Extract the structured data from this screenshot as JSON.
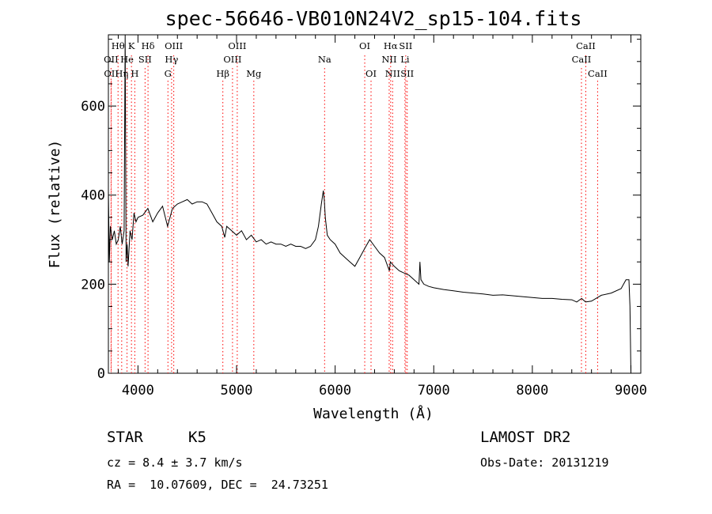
{
  "chart_data": {
    "type": "line",
    "title": "spec-56646-VB010N24V2_sp15-104.fits",
    "xlabel": "Wavelength (Å)",
    "ylabel": "Flux (relative)",
    "xlim": [
      3700,
      9100
    ],
    "ylim": [
      0,
      760
    ],
    "xticks": [
      4000,
      5000,
      6000,
      7000,
      8000,
      9000
    ],
    "yticks": [
      0,
      200,
      400,
      600
    ],
    "grid": false,
    "series": [
      {
        "x": [
          3700,
          3710,
          3720,
          3740,
          3760,
          3780,
          3800,
          3820,
          3840,
          3860,
          3870,
          3880,
          3890,
          3900,
          3920,
          3940,
          3960,
          3980,
          4000,
          4050,
          4100,
          4150,
          4200,
          4250,
          4300,
          4350,
          4400,
          4450,
          4500,
          4550,
          4600,
          4650,
          4700,
          4750,
          4800,
          4850,
          4880,
          4900,
          4950,
          5000,
          5050,
          5100,
          5150,
          5200,
          5250,
          5300,
          5350,
          5400,
          5450,
          5500,
          5550,
          5600,
          5650,
          5700,
          5750,
          5800,
          5830,
          5860,
          5880,
          5890,
          5900,
          5920,
          5950,
          6000,
          6050,
          6100,
          6150,
          6200,
          6250,
          6300,
          6350,
          6400,
          6450,
          6500,
          6550,
          6560,
          6600,
          6650,
          6700,
          6750,
          6800,
          6850,
          6860,
          6870,
          6900,
          6950,
          7000,
          7100,
          7200,
          7300,
          7400,
          7500,
          7600,
          7700,
          7800,
          7900,
          8000,
          8100,
          8200,
          8300,
          8400,
          8450,
          8500,
          8540,
          8600,
          8660,
          8700,
          8800,
          8900,
          8950,
          8980,
          8990,
          9000
        ],
        "y": [
          410,
          250,
          330,
          300,
          320,
          290,
          300,
          330,
          290,
          320,
          760,
          250,
          290,
          240,
          320,
          300,
          360,
          340,
          350,
          355,
          370,
          340,
          360,
          375,
          330,
          370,
          380,
          385,
          390,
          380,
          385,
          385,
          380,
          360,
          340,
          330,
          305,
          330,
          320,
          310,
          320,
          300,
          310,
          295,
          300,
          290,
          295,
          290,
          290,
          285,
          290,
          285,
          285,
          280,
          285,
          300,
          330,
          380,
          410,
          390,
          350,
          310,
          300,
          290,
          270,
          260,
          250,
          240,
          260,
          280,
          300,
          285,
          270,
          260,
          230,
          250,
          240,
          230,
          225,
          220,
          210,
          200,
          250,
          210,
          200,
          195,
          192,
          188,
          185,
          182,
          180,
          178,
          175,
          176,
          174,
          172,
          170,
          168,
          168,
          166,
          165,
          160,
          168,
          160,
          162,
          170,
          175,
          180,
          190,
          210,
          210,
          150,
          0
        ]
      }
    ],
    "line_markers": [
      {
        "label": "Hθ",
        "x": 3798,
        "row": 1,
        "color": "#000000"
      },
      {
        "label": "K",
        "x": 3934,
        "row": 1,
        "color": "#000000"
      },
      {
        "label": "Hδ",
        "x": 4102,
        "row": 1,
        "color": "#000000"
      },
      {
        "label": "OIII",
        "x": 4363,
        "row": 1,
        "color": "#000000"
      },
      {
        "label": "OIII",
        "x": 5007,
        "row": 1,
        "color": "#000000"
      },
      {
        "label": "OI",
        "x": 6300,
        "row": 1,
        "color": "#000000"
      },
      {
        "label": "Hα",
        "x": 6563,
        "row": 1,
        "color": "#000000"
      },
      {
        "label": "SII",
        "x": 6716,
        "row": 1,
        "color": "#000000"
      },
      {
        "label": "CaII",
        "x": 8542,
        "row": 1,
        "color": "#000000"
      },
      {
        "label": "OII",
        "x": 3727,
        "row": 2,
        "color": "#000000"
      },
      {
        "label": "He",
        "x": 3889,
        "row": 2,
        "color": "#000000"
      },
      {
        "label": "SII",
        "x": 4072,
        "row": 2,
        "color": "#000000"
      },
      {
        "label": "Hγ",
        "x": 4341,
        "row": 2,
        "color": "#000000"
      },
      {
        "label": "OIII",
        "x": 4959,
        "row": 2,
        "color": "#000000"
      },
      {
        "label": "Na",
        "x": 5893,
        "row": 2,
        "color": "#000000"
      },
      {
        "label": "NII",
        "x": 6548,
        "row": 2,
        "color": "#000000"
      },
      {
        "label": "Li",
        "x": 6708,
        "row": 2,
        "color": "#000000"
      },
      {
        "label": "CaII",
        "x": 8498,
        "row": 2,
        "color": "#000000"
      },
      {
        "label": "OII",
        "x": 3729,
        "row": 3,
        "color": "#000000"
      },
      {
        "label": "Hη",
        "x": 3835,
        "row": 3,
        "color": "#000000"
      },
      {
        "label": "H",
        "x": 3968,
        "row": 3,
        "color": "#000000"
      },
      {
        "label": "G",
        "x": 4304,
        "row": 3,
        "color": "#000000"
      },
      {
        "label": "Hβ",
        "x": 4861,
        "row": 3,
        "color": "#000000"
      },
      {
        "label": "Mg",
        "x": 5175,
        "row": 3,
        "color": "#000000"
      },
      {
        "label": "OI",
        "x": 6364,
        "row": 3,
        "color": "#000000"
      },
      {
        "label": "NII",
        "x": 6583,
        "row": 3,
        "color": "#000000"
      },
      {
        "label": "SII",
        "x": 6731,
        "row": 3,
        "color": "#000000"
      },
      {
        "label": "CaII",
        "x": 8662,
        "row": 3,
        "color": "#000000"
      }
    ],
    "marker_line_color": "#ff0000"
  },
  "info": {
    "object_class": "STAR",
    "subclass": "K5",
    "survey": "LAMOST DR2",
    "cz": "cz = 8.4 ± 3.7 km/s",
    "obs_date": "Obs-Date: 20131219",
    "coords": "RA =  10.07609, DEC =  24.73251"
  }
}
